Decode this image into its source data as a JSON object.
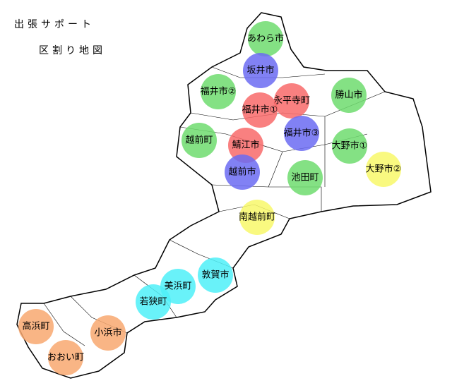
{
  "header": {
    "title": "出張サポート",
    "subtitle": "区割り地図"
  },
  "regions": [
    {
      "label": "あわら市",
      "color": "#6fdc6f"
    },
    {
      "label": "坂井市",
      "color": "#6b6bf2"
    },
    {
      "label": "福井市②",
      "color": "#6fdc6f"
    },
    {
      "label": "永平寺町",
      "color": "#f86a6a"
    },
    {
      "label": "勝山市",
      "color": "#6fdc6f"
    },
    {
      "label": "福井市①",
      "color": "#f86a6a"
    },
    {
      "label": "福井市③",
      "color": "#6b6bf2"
    },
    {
      "label": "大野市①",
      "color": "#6fdc6f"
    },
    {
      "label": "越前町",
      "color": "#6fdc6f"
    },
    {
      "label": "鯖江市",
      "color": "#f86a6a"
    },
    {
      "label": "越前市",
      "color": "#6b6bf2"
    },
    {
      "label": "池田町",
      "color": "#6fdc6f"
    },
    {
      "label": "大野市②",
      "color": "#f8f86a"
    },
    {
      "label": "南越前町",
      "color": "#f8f86a"
    },
    {
      "label": "敦賀市",
      "color": "#4ff0f8"
    },
    {
      "label": "美浜町",
      "color": "#4ff0f8"
    },
    {
      "label": "若狭町",
      "color": "#4ff0f8"
    },
    {
      "label": "高浜町",
      "color": "#f8a870"
    },
    {
      "label": "小浜市",
      "color": "#f8a870"
    },
    {
      "label": "おおい町",
      "color": "#f8a870"
    }
  ]
}
